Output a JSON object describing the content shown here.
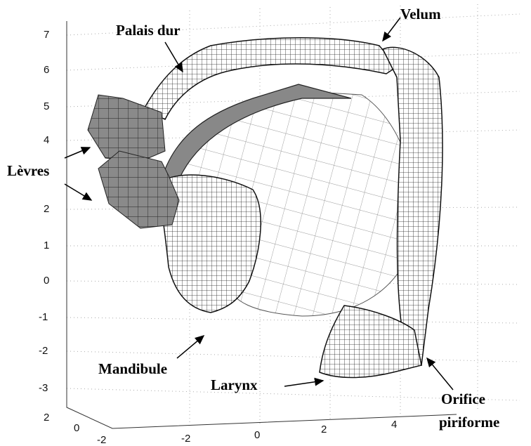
{
  "axes": {
    "z_ticks": [
      "7",
      "6",
      "5",
      "4",
      "2",
      "1",
      "0",
      "-1",
      "-2",
      "-3"
    ],
    "y_ticks": [
      "2",
      "0",
      "-2"
    ],
    "x_ticks": [
      "-2",
      "0",
      "2",
      "4"
    ]
  },
  "labels": {
    "palais": "Palais dur",
    "velum": "Velum",
    "levres": "Lèvres",
    "mandibule": "Mandibule",
    "larynx": "Larynx",
    "orifice": [
      "Orifice",
      "piriforme"
    ]
  }
}
